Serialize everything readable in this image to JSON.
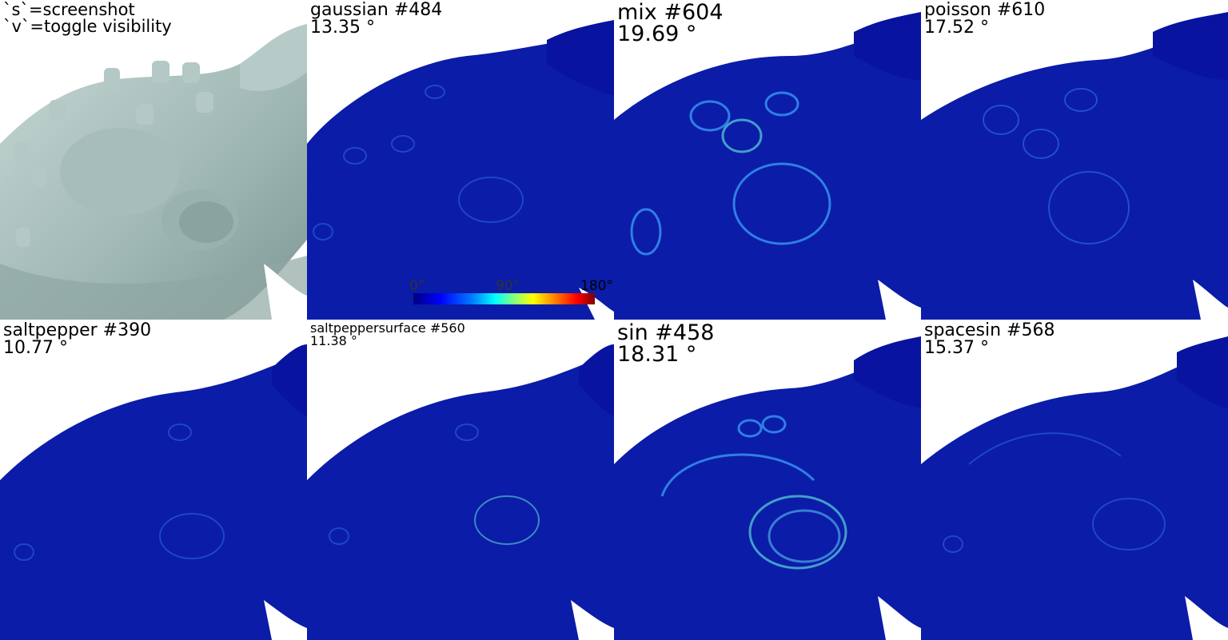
{
  "help": {
    "line1": "`s`=screenshot",
    "line2": "`v`=toggle visibility"
  },
  "panels": [
    {
      "name": "gaussian #484",
      "angle": "13.35 °"
    },
    {
      "name": "mix #604",
      "angle": "19.69 °"
    },
    {
      "name": "poisson #610",
      "angle": "17.52 °"
    },
    {
      "name": "saltpepper #390",
      "angle": "10.77 °"
    },
    {
      "name": "saltpeppersurface #560",
      "angle": "11.38 °"
    },
    {
      "name": "sin #458",
      "angle": "18.31 °"
    },
    {
      "name": "spacesin #568",
      "angle": "15.37 °"
    }
  ],
  "colorbar": {
    "min_label": "0°",
    "mid_label": "90°",
    "max_label": "180°",
    "colors": [
      "#00007f",
      "#0000ff",
      "#00ffff",
      "#ffff00",
      "#ff0000",
      "#7f0000"
    ]
  },
  "colors": {
    "mesh_reference": "#a9c2bf",
    "mesh_error_base": "#0a1ca8",
    "background": "#ffffff"
  }
}
